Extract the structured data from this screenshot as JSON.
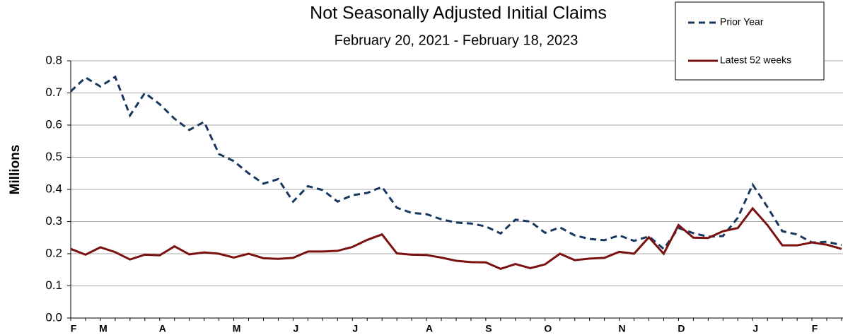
{
  "chart_data": {
    "type": "line",
    "title": "Not Seasonally Adjusted Initial Claims",
    "subtitle": "February 20, 2021  - February 18, 2023",
    "y_label": "Millions",
    "categories": [
      "F",
      null,
      "M",
      null,
      null,
      null,
      "A",
      null,
      null,
      null,
      null,
      "M",
      null,
      null,
      null,
      "J",
      null,
      null,
      null,
      "J",
      null,
      null,
      null,
      null,
      "A",
      null,
      null,
      null,
      "S",
      null,
      null,
      null,
      "O",
      null,
      null,
      null,
      null,
      "N",
      null,
      null,
      null,
      "D",
      null,
      null,
      null,
      null,
      "J",
      null,
      null,
      null,
      "F",
      null,
      null
    ],
    "series": [
      {
        "name": "Prior Year",
        "color": "#17375e",
        "dash": true,
        "values": [
          0.705,
          0.748,
          0.72,
          0.75,
          0.63,
          0.7,
          0.665,
          0.62,
          0.585,
          0.61,
          0.51,
          0.488,
          0.45,
          0.418,
          0.432,
          0.362,
          0.41,
          0.398,
          0.362,
          0.382,
          0.389,
          0.408,
          0.343,
          0.327,
          0.323,
          0.307,
          0.297,
          0.294,
          0.285,
          0.263,
          0.306,
          0.3,
          0.265,
          0.282,
          0.257,
          0.246,
          0.242,
          0.257,
          0.24,
          0.254,
          0.215,
          0.28,
          0.264,
          0.253,
          0.255,
          0.312,
          0.415,
          0.345,
          0.27,
          0.26,
          0.235,
          0.237,
          0.227
        ]
      },
      {
        "name": "Latest 52 weeks",
        "color": "#7b1010",
        "dash": false,
        "values": [
          0.215,
          0.197,
          0.22,
          0.205,
          0.182,
          0.197,
          0.195,
          0.223,
          0.198,
          0.204,
          0.2,
          0.188,
          0.2,
          0.186,
          0.184,
          0.187,
          0.207,
          0.207,
          0.209,
          0.221,
          0.243,
          0.26,
          0.201,
          0.197,
          0.196,
          0.188,
          0.178,
          0.174,
          0.173,
          0.153,
          0.168,
          0.155,
          0.167,
          0.2,
          0.18,
          0.185,
          0.187,
          0.206,
          0.2,
          0.251,
          0.2,
          0.289,
          0.25,
          0.249,
          0.27,
          0.28,
          0.341,
          0.289,
          0.226,
          0.226,
          0.235,
          0.228,
          0.215
        ]
      }
    ],
    "ylim": [
      0,
      0.8
    ],
    "yticks": [
      {
        "value": 0,
        "label": "0.0"
      },
      0.1,
      0.2,
      0.3,
      0.4,
      0.5,
      0.6,
      0.7,
      0.8
    ],
    "grid": true,
    "legend": "top-right"
  }
}
